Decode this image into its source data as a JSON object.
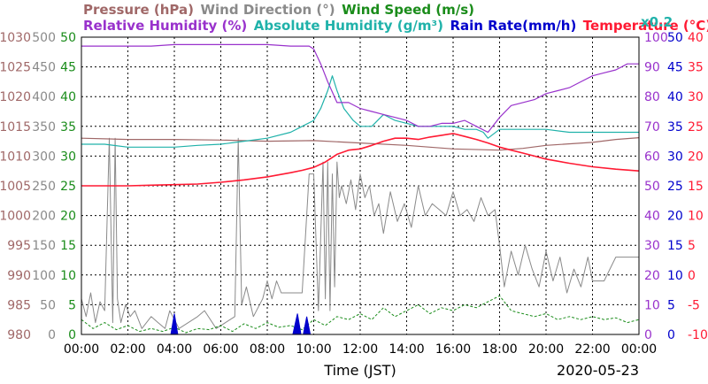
{
  "chart_data": {
    "type": "line",
    "title": "",
    "date": "2020-05-23",
    "xlabel": "Time (JST)",
    "x_ticks": [
      "00:00",
      "02:00",
      "04:00",
      "06:00",
      "08:00",
      "10:00",
      "12:00",
      "14:00",
      "16:00",
      "18:00",
      "20:00",
      "22:00",
      "00:00"
    ],
    "x_range_hours": [
      0,
      24
    ],
    "grid": true,
    "legend": [
      [
        {
          "label": "Pressure (hPa)",
          "color": "#a06868"
        },
        {
          "label": "Wind Direction (°)",
          "color": "#8a8a8a"
        },
        {
          "label": "Wind Speed (m/s)",
          "color": "#1a8c1a"
        }
      ],
      [
        {
          "label": "Relative Humidity (%)",
          "color": "#9932cc"
        },
        {
          "label": "Absolute Humidity (g/m³)",
          "color": "#20b2aa"
        },
        {
          "label": "Rain Rate(mm/h)",
          "color": "#0000cc"
        },
        {
          "label": "Temperature (°C)",
          "color": "#ff1a33"
        }
      ]
    ],
    "scale_note": "x0.2",
    "axes": {
      "pressure": {
        "label": "Pressure (hPa)",
        "side": "left",
        "color": "#a06868",
        "ticks": [
          "980",
          "985",
          "990",
          "995",
          "1000",
          "1005",
          "1010",
          "1015",
          "1020",
          "1025",
          "1030"
        ]
      },
      "wind_direction": {
        "label": "Wind Direction (°)",
        "side": "left",
        "color": "#8a8a8a",
        "ticks": [
          "0",
          "50",
          "100",
          "150",
          "200",
          "250",
          "300",
          "350",
          "400",
          "450",
          "500"
        ]
      },
      "wind_speed": {
        "label": "Wind Speed (m/s)",
        "side": "left",
        "color": "#1a8c1a",
        "ticks": [
          "0",
          "5",
          "10",
          "15",
          "20",
          "25",
          "30",
          "35",
          "40",
          "45",
          "50"
        ]
      },
      "humidity": {
        "label": "Relative Humidity (%)",
        "side": "right",
        "color": "#9932cc",
        "ticks": [
          "0",
          "10",
          "20",
          "30",
          "40",
          "50",
          "60",
          "70",
          "80",
          "90",
          "100"
        ]
      },
      "abs_rain": {
        "label": "x0.2",
        "side": "right",
        "color": "#0000cc",
        "ticks": [
          "0",
          "5",
          "10",
          "15",
          "20",
          "25",
          "30",
          "35",
          "40",
          "45",
          "50"
        ]
      },
      "temperature": {
        "label": "Temperature (°C)",
        "side": "right",
        "color": "#ff1a33",
        "ticks": [
          "-10",
          "-5",
          "0",
          "5",
          "10",
          "15",
          "20",
          "25",
          "30",
          "35",
          "40"
        ]
      }
    },
    "axis_ranges": {
      "pressure": [
        980,
        1030
      ],
      "wind_direction": [
        0,
        500
      ],
      "wind_speed": [
        0,
        50
      ],
      "humidity": [
        0,
        100
      ],
      "abs_rain": [
        0,
        50
      ],
      "temperature": [
        -10,
        40
      ]
    },
    "series": [
      {
        "name": "Relative Humidity (%)",
        "axis": "humidity",
        "color": "#9932cc",
        "x": [
          0,
          0.5,
          1,
          2,
          3,
          4,
          5,
          6,
          7,
          8,
          9,
          9.8,
          10,
          10.3,
          10.6,
          11,
          11.5,
          12,
          12.5,
          13,
          13.5,
          14,
          14.5,
          15,
          15.5,
          16,
          16.5,
          17,
          17.5,
          18,
          18.5,
          19,
          19.5,
          20,
          20.5,
          21,
          21.5,
          22,
          22.5,
          23,
          23.5,
          24
        ],
        "y": [
          97,
          97,
          97,
          97,
          97,
          97.5,
          97.5,
          97.5,
          97.5,
          97.5,
          97,
          97,
          96,
          91,
          85,
          78,
          78,
          76,
          75,
          74,
          73,
          72,
          70,
          70,
          71,
          71,
          72,
          70,
          68,
          73,
          77,
          78,
          79,
          81,
          82,
          83,
          85,
          87,
          88,
          89,
          91,
          91
        ]
      },
      {
        "name": "Absolute Humidity (g/m³)",
        "axis": "abs_rain",
        "color": "#20b2aa",
        "x": [
          0,
          1,
          2,
          3,
          4,
          5,
          6,
          7,
          8,
          9,
          9.5,
          10,
          10.3,
          10.6,
          10.8,
          11,
          11.3,
          11.7,
          12,
          12.5,
          13,
          13.5,
          14,
          14.5,
          15,
          15.5,
          16,
          16.5,
          17,
          17.3,
          17.5,
          18,
          19,
          20,
          21,
          22,
          23,
          24
        ],
        "y": [
          32,
          32,
          31.5,
          31.5,
          31.5,
          31.8,
          32,
          32.5,
          33,
          34,
          35,
          36,
          38,
          41,
          43.5,
          41,
          38,
          36,
          35,
          35,
          37,
          36,
          35.5,
          35,
          35,
          35,
          35,
          34.5,
          34.5,
          34,
          33,
          34.5,
          34.5,
          34.5,
          34,
          34,
          34,
          34
        ]
      },
      {
        "name": "Pressure (hPa)",
        "axis": "pressure",
        "color": "#a06868",
        "x": [
          0,
          2,
          4,
          6,
          8,
          10,
          12,
          14,
          15,
          16,
          18,
          19,
          20,
          22,
          23,
          24
        ],
        "y": [
          1013,
          1012.8,
          1012.8,
          1012.7,
          1012.5,
          1012.6,
          1012.2,
          1011.8,
          1011.5,
          1011.2,
          1011.0,
          1011.3,
          1011.8,
          1012.3,
          1012.8,
          1013.1
        ]
      },
      {
        "name": "Temperature (°C)",
        "axis": "temperature",
        "color": "#ff1a33",
        "x": [
          0,
          1,
          2,
          3,
          4,
          5,
          6,
          7,
          8,
          9,
          9.5,
          10,
          10.5,
          11,
          11.5,
          12,
          12.5,
          13,
          13.5,
          14,
          14.5,
          15,
          15.5,
          16,
          16.5,
          17,
          17.5,
          18,
          18.5,
          19,
          19.5,
          20,
          21,
          22,
          23,
          24
        ],
        "y": [
          15.0,
          15.0,
          15.0,
          15.1,
          15.2,
          15.3,
          15.6,
          16.0,
          16.5,
          17.2,
          17.6,
          18.1,
          19.0,
          20.3,
          21.0,
          21.2,
          21.8,
          22.5,
          23.0,
          23.0,
          22.8,
          23.2,
          23.5,
          23.8,
          23.3,
          22.8,
          22.2,
          21.5,
          21.0,
          20.5,
          20.0,
          19.5,
          18.8,
          18.2,
          17.8,
          17.5
        ]
      },
      {
        "name": "Wind Direction (°)",
        "axis": "wind_direction",
        "color": "#8a8a8a",
        "x": [
          0,
          0.2,
          0.4,
          0.6,
          0.8,
          1.0,
          1.2,
          1.35,
          1.45,
          1.55,
          1.7,
          1.9,
          2.1,
          2.3,
          2.6,
          3.0,
          3.3,
          3.6,
          3.8,
          4.2,
          4.6,
          5.0,
          5.3,
          5.8,
          6.2,
          6.6,
          6.75,
          6.9,
          7.1,
          7.4,
          7.8,
          8.0,
          8.2,
          8.4,
          8.6,
          9.0,
          9.5,
          9.8,
          10.0,
          10.2,
          10.4,
          10.5,
          10.6,
          10.7,
          10.8,
          10.9,
          11.0,
          11.1,
          11.2,
          11.4,
          11.6,
          11.8,
          12.0,
          12.2,
          12.4,
          12.6,
          12.8,
          13.0,
          13.3,
          13.6,
          13.9,
          14.2,
          14.5,
          14.8,
          15.1,
          15.4,
          15.7,
          16.0,
          16.3,
          16.6,
          16.9,
          17.2,
          17.5,
          17.8,
          18.0,
          18.2,
          18.5,
          18.8,
          19.1,
          19.4,
          19.7,
          20.0,
          20.3,
          20.6,
          20.9,
          21.2,
          21.5,
          21.8,
          22.0,
          22.5,
          23.0,
          23.5,
          24.0
        ],
        "y": [
          60,
          30,
          70,
          20,
          55,
          40,
          330,
          20,
          330,
          60,
          20,
          50,
          30,
          40,
          10,
          30,
          20,
          10,
          40,
          10,
          20,
          30,
          40,
          10,
          20,
          30,
          330,
          50,
          80,
          30,
          60,
          90,
          60,
          90,
          70,
          70,
          70,
          270,
          270,
          40,
          290,
          60,
          290,
          40,
          270,
          80,
          290,
          230,
          250,
          220,
          260,
          210,
          270,
          230,
          250,
          200,
          220,
          170,
          240,
          190,
          220,
          180,
          250,
          200,
          220,
          210,
          200,
          240,
          200,
          210,
          190,
          230,
          200,
          210,
          150,
          80,
          140,
          100,
          150,
          110,
          80,
          140,
          90,
          130,
          70,
          110,
          80,
          130,
          90,
          90,
          130,
          130,
          130
        ]
      },
      {
        "name": "Wind Speed (m/s)",
        "axis": "wind_speed",
        "color": "#1a8c1a",
        "x": [
          0,
          0.5,
          1,
          1.5,
          2,
          2.5,
          3,
          3.5,
          4,
          4.5,
          5,
          5.5,
          6,
          6.5,
          7,
          7.5,
          8,
          8.5,
          9,
          9.5,
          10,
          10.5,
          11,
          11.5,
          12,
          12.5,
          13,
          13.5,
          14,
          14.5,
          15,
          15.5,
          16,
          16.5,
          17,
          17.5,
          18,
          18.5,
          19,
          19.5,
          20,
          20.5,
          21,
          21.5,
          22,
          22.5,
          23,
          23.5,
          24
        ],
        "y": [
          2.5,
          1,
          2,
          0.8,
          1.5,
          0.5,
          1,
          0.5,
          1.2,
          0.3,
          1,
          0.8,
          1.5,
          0.5,
          1.8,
          1,
          2,
          1.2,
          1.5,
          0.8,
          2.5,
          1.5,
          3,
          2.5,
          3.5,
          2.5,
          4.5,
          3,
          4,
          5,
          3.5,
          4.5,
          4,
          5,
          4.5,
          5.5,
          6.5,
          4,
          3.5,
          3,
          3.5,
          2.5,
          3,
          2.5,
          3,
          2.5,
          2.8,
          2,
          2.5
        ]
      },
      {
        "name": "Rain Rate(mm/h)",
        "axis": "abs_rain",
        "color": "#0000cc",
        "style": "filled-spikes",
        "x": [
          3.85,
          4.0,
          4.15,
          9.1,
          9.3,
          9.45,
          9.55,
          9.7,
          9.85
        ],
        "y": [
          0,
          3.5,
          0,
          0,
          3.5,
          0,
          0,
          3,
          0
        ]
      }
    ]
  }
}
